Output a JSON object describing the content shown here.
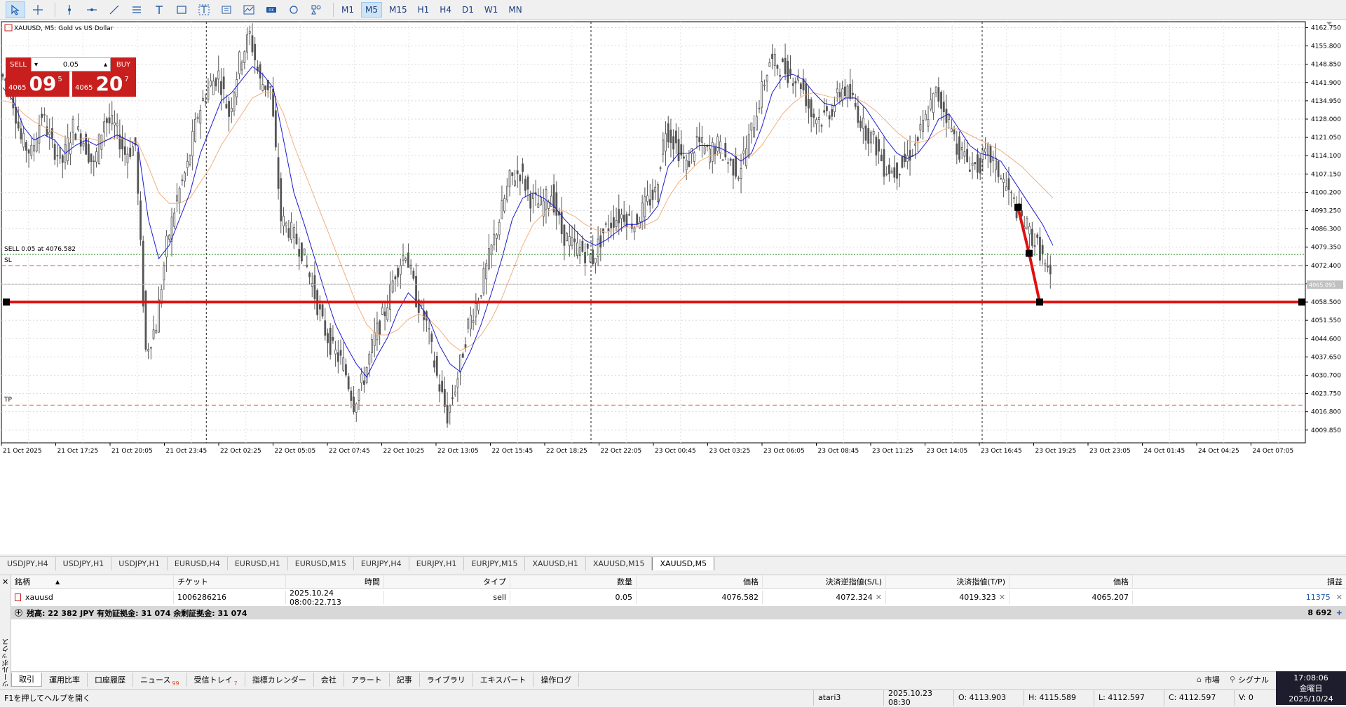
{
  "toolbar": {
    "timeframes": [
      "M1",
      "M5",
      "M15",
      "H1",
      "H4",
      "D1",
      "W1",
      "MN"
    ],
    "active_timeframe": "M5"
  },
  "chart": {
    "symbol_title": "XAUUSD, M5:  Gold vs US Dollar",
    "sell_line_label": "SELL 0.05 at 4076.582",
    "sl_label": "SL",
    "tp_label": "TP",
    "current_price_tag": "4065.095",
    "colors": {
      "candle": "#555555",
      "ma_fast": "#1a1ad0",
      "ma_slow": "#f0b080",
      "hline": "#e01010",
      "sell_line": "#2e8b2e",
      "sl_line": "#e05030",
      "tp_line": "#e07040"
    }
  },
  "trade_panel": {
    "sell_label": "SELL",
    "buy_label": "BUY",
    "lot": "0.05",
    "bid_small": "4065",
    "bid_big": "09",
    "bid_sup": "5",
    "ask_small": "4065",
    "ask_big": "20",
    "ask_sup": "7"
  },
  "chart_data": {
    "type": "candlestick",
    "symbol": "XAUUSD",
    "timeframe": "M5",
    "y_ticks": [
      "4162.750",
      "4155.800",
      "4148.850",
      "4141.900",
      "4134.950",
      "4128.000",
      "4121.050",
      "4114.100",
      "4107.150",
      "4100.200",
      "4093.250",
      "4086.300",
      "4079.350",
      "4072.400",
      "4065.450",
      "4058.500",
      "4051.550",
      "4044.600",
      "4037.650",
      "4030.700",
      "4023.750",
      "4016.800",
      "4009.850"
    ],
    "ylim": [
      4005,
      4165
    ],
    "x_ticks": [
      "21 Oct 2025",
      "21 Oct 17:25",
      "21 Oct 20:05",
      "21 Oct 23:45",
      "22 Oct 02:25",
      "22 Oct 05:05",
      "22 Oct 07:45",
      "22 Oct 10:25",
      "22 Oct 13:05",
      "22 Oct 15:45",
      "22 Oct 18:25",
      "22 Oct 22:05",
      "23 Oct 00:45",
      "23 Oct 03:25",
      "23 Oct 06:05",
      "23 Oct 08:45",
      "23 Oct 11:25",
      "23 Oct 14:05",
      "23 Oct 16:45",
      "23 Oct 19:25",
      "23 Oct 23:05",
      "24 Oct 01:45",
      "24 Oct 04:25",
      "24 Oct 07:05"
    ],
    "close_path": [
      4145,
      4140,
      4120,
      4115,
      4130,
      4118,
      4112,
      4125,
      4120,
      4110,
      4128,
      4125,
      4115,
      4118,
      4040,
      4050,
      4080,
      4098,
      4110,
      4130,
      4140,
      4145,
      4130,
      4150,
      4160,
      4142,
      4140,
      4090,
      4085,
      4078,
      4065,
      4050,
      4040,
      4035,
      4020,
      4030,
      4045,
      4055,
      4070,
      4078,
      4060,
      4050,
      4030,
      4015,
      4030,
      4050,
      4060,
      4075,
      4090,
      4105,
      4108,
      4098,
      4095,
      4100,
      4085,
      4080,
      4078,
      4075,
      4085,
      4090,
      4092,
      4088,
      4095,
      4100,
      4125,
      4118,
      4110,
      4120,
      4115,
      4118,
      4112,
      4108,
      4120,
      4135,
      4150,
      4148,
      4145,
      4142,
      4130,
      4128,
      4132,
      4140,
      4135,
      4125,
      4120,
      4110,
      4108,
      4112,
      4118,
      4128,
      4138,
      4130,
      4118,
      4112,
      4110,
      4115,
      4108,
      4100,
      4092,
      4085,
      4078,
      4066
    ],
    "ma_fast_path": [
      4140,
      4135,
      4125,
      4120,
      4122,
      4120,
      4115,
      4118,
      4120,
      4118,
      4120,
      4122,
      4120,
      4118,
      4090,
      4075,
      4080,
      4090,
      4100,
      4115,
      4125,
      4135,
      4138,
      4143,
      4148,
      4145,
      4140,
      4120,
      4100,
      4088,
      4075,
      4062,
      4050,
      4042,
      4035,
      4030,
      4038,
      4045,
      4055,
      4062,
      4058,
      4052,
      4042,
      4035,
      4032,
      4040,
      4050,
      4062,
      4075,
      4090,
      4098,
      4100,
      4098,
      4095,
      4090,
      4086,
      4082,
      4080,
      4082,
      4085,
      4088,
      4088,
      4090,
      4095,
      4110,
      4115,
      4115,
      4118,
      4118,
      4117,
      4115,
      4112,
      4115,
      4125,
      4138,
      4144,
      4145,
      4143,
      4138,
      4134,
      4133,
      4136,
      4136,
      4132,
      4126,
      4120,
      4115,
      4113,
      4115,
      4120,
      4128,
      4130,
      4124,
      4118,
      4115,
      4114,
      4112,
      4106,
      4100,
      4094,
      4088,
      4080
    ],
    "ma_slow_path": [
      4135,
      4134,
      4130,
      4127,
      4125,
      4123,
      4121,
      4120,
      4121,
      4120,
      4120,
      4121,
      4120,
      4119,
      4110,
      4100,
      4096,
      4096,
      4098,
      4104,
      4110,
      4118,
      4124,
      4130,
      4136,
      4138,
      4138,
      4130,
      4118,
      4108,
      4098,
      4088,
      4078,
      4068,
      4058,
      4050,
      4046,
      4046,
      4048,
      4052,
      4054,
      4052,
      4048,
      4043,
      4040,
      4042,
      4046,
      4052,
      4060,
      4070,
      4080,
      4088,
      4092,
      4094,
      4093,
      4091,
      4088,
      4086,
      4085,
      4086,
      4087,
      4087,
      4088,
      4090,
      4098,
      4104,
      4108,
      4112,
      4114,
      4115,
      4115,
      4114,
      4114,
      4118,
      4124,
      4130,
      4134,
      4137,
      4138,
      4137,
      4136,
      4136,
      4136,
      4134,
      4131,
      4127,
      4123,
      4120,
      4119,
      4120,
      4123,
      4125,
      4124,
      4122,
      4120,
      4118,
      4116,
      4113,
      4110,
      4106,
      4102,
      4098
    ],
    "horizontal_line_price": 4058.5,
    "sell_price": 4076.582,
    "sl_price": 4072.324,
    "tp_price": 4019.323,
    "current_price": 4065.095,
    "trendline_points": [
      [
        4094.5
      ],
      [
        4077.0
      ],
      [
        4058.5
      ]
    ]
  },
  "chart_tabs": [
    "USDJPY,H4",
    "USDJPY,H1",
    "USDJPY,H1",
    "EURUSD,H4",
    "EURUSD,H1",
    "EURUSD,M15",
    "EURJPY,H4",
    "EURJPY,H1",
    "EURJPY,M15",
    "XAUUSD,H1",
    "XAUUSD,M15",
    "XAUUSD,M5"
  ],
  "active_chart_tab": "XAUUSD,M5",
  "terminal": {
    "headers": [
      "銘柄",
      "チケット",
      "時間",
      "タイプ",
      "数量",
      "価格",
      "決済逆指値(S/L)",
      "決済指値(T/P)",
      "価格",
      "損益"
    ],
    "row": {
      "symbol": "xauusd",
      "ticket": "1006286216",
      "time": "2025.10.24 08:00:22.713",
      "type": "sell",
      "volume": "0.05",
      "open_price": "4076.582",
      "sl": "4072.324",
      "tp": "4019.323",
      "price": "4065.207",
      "profit": "11375"
    },
    "balance_text": "残高: 22 382 JPY  有効証拠金: 31 074  余剰証拠金: 31 074",
    "balance_profit": "8 692",
    "side_label": "ツールボックス",
    "bottom_tabs": [
      "取引",
      "運用比率",
      "口座履歴",
      "ニュース",
      "受信トレイ",
      "指標カレンダー",
      "会社",
      "アラート",
      "記事",
      "ライブラリ",
      "エキスパート",
      "操作ログ"
    ],
    "news_badge": "99",
    "inbox_badge": "7",
    "market_label": "市場",
    "signal_label": "シグナル"
  },
  "statusbar": {
    "help": "F1を押してヘルプを開く",
    "profile": "atari3",
    "datetime": "2025.10.23 08:30",
    "open": "O: 4113.903",
    "high": "H: 4115.589",
    "low": "L: 4112.597",
    "close": "C: 4112.597",
    "volume": "V: 0"
  },
  "clock": {
    "time": "17:08:06",
    "weekday": "金曜日",
    "date": "2025/10/24"
  }
}
